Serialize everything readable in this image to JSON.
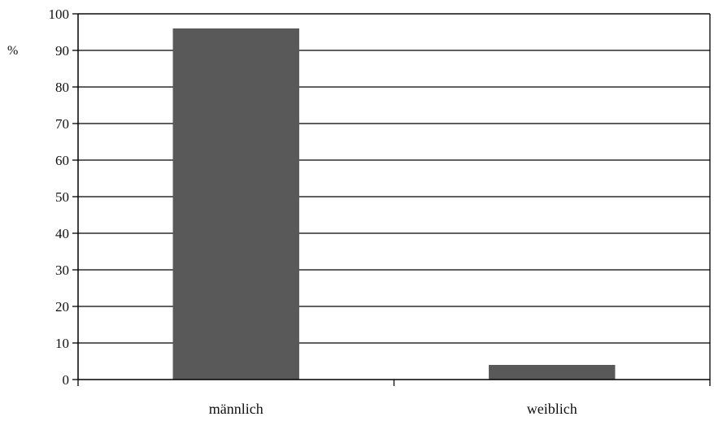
{
  "chart_data": {
    "type": "bar",
    "title": "",
    "xlabel": "",
    "ylabel": "%",
    "categories": [
      "männlich",
      "weiblich"
    ],
    "values": [
      96,
      4
    ],
    "ylim": [
      0,
      100
    ],
    "yticks": [
      0,
      10,
      20,
      30,
      40,
      50,
      60,
      70,
      80,
      90,
      100
    ],
    "grid": true,
    "legend": "none",
    "colors": {
      "bar": "#595959",
      "grid": "#000000",
      "axis": "#000000"
    }
  }
}
